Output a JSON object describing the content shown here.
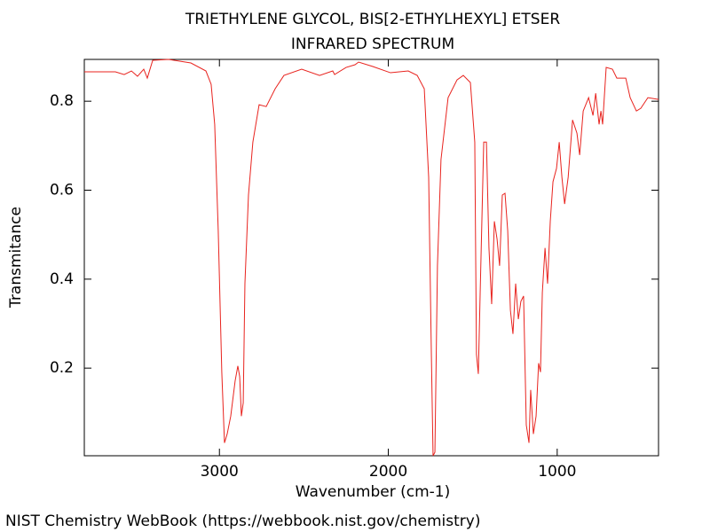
{
  "chart_data": {
    "type": "line",
    "title": "TRIETHYLENE GLYCOL, BIS[2-ETHYLHEXYL] ETSER",
    "subtitle": "INFRARED SPECTRUM",
    "x_label": "Wavenumber (cm-1)",
    "y_label": "Transmitance",
    "xlim": [
      3800,
      400
    ],
    "ylim": [
      0.003,
      0.894
    ],
    "xticks": [
      3000,
      2000,
      1000
    ],
    "yticks": [
      0.2,
      0.4,
      0.6,
      0.8
    ],
    "x": [
      3800,
      3616,
      3564,
      3521,
      3485,
      3448,
      3427,
      3395,
      3301,
      3169,
      3080,
      3049,
      3028,
      3007,
      2986,
      2970,
      2954,
      2933,
      2907,
      2891,
      2880,
      2870,
      2859,
      2849,
      2828,
      2802,
      2765,
      2723,
      2670,
      2618,
      2513,
      2407,
      2329,
      2318,
      2250,
      2197,
      2176,
      2092,
      1987,
      1882,
      1829,
      1787,
      1761,
      1745,
      1735,
      1724,
      1709,
      1688,
      1646,
      1593,
      1556,
      1514,
      1488,
      1478,
      1467,
      1456,
      1435,
      1419,
      1404,
      1388,
      1372,
      1356,
      1341,
      1325,
      1309,
      1293,
      1277,
      1262,
      1246,
      1230,
      1215,
      1199,
      1183,
      1167,
      1157,
      1141,
      1125,
      1110,
      1099,
      1088,
      1072,
      1057,
      1041,
      1025,
      1004,
      988,
      972,
      956,
      935,
      909,
      883,
      867,
      846,
      814,
      788,
      772,
      752,
      741,
      731,
      710,
      673,
      647,
      594,
      568,
      531,
      505,
      463,
      400
    ],
    "series": [
      {
        "name": "Transmitance",
        "color": "#e8231e",
        "values": [
          0.866,
          0.866,
          0.86,
          0.868,
          0.856,
          0.872,
          0.852,
          0.892,
          0.894,
          0.886,
          0.868,
          0.838,
          0.748,
          0.509,
          0.191,
          0.032,
          0.052,
          0.092,
          0.171,
          0.205,
          0.181,
          0.092,
          0.122,
          0.39,
          0.589,
          0.708,
          0.792,
          0.788,
          0.828,
          0.858,
          0.872,
          0.858,
          0.868,
          0.86,
          0.876,
          0.882,
          0.888,
          0.878,
          0.864,
          0.868,
          0.858,
          0.828,
          0.629,
          0.231,
          0.003,
          0.011,
          0.43,
          0.669,
          0.808,
          0.848,
          0.858,
          0.842,
          0.708,
          0.231,
          0.187,
          0.37,
          0.708,
          0.708,
          0.47,
          0.344,
          0.53,
          0.49,
          0.43,
          0.589,
          0.593,
          0.509,
          0.33,
          0.277,
          0.39,
          0.31,
          0.35,
          0.362,
          0.072,
          0.032,
          0.151,
          0.052,
          0.092,
          0.211,
          0.191,
          0.37,
          0.47,
          0.39,
          0.53,
          0.619,
          0.649,
          0.708,
          0.629,
          0.569,
          0.629,
          0.758,
          0.728,
          0.679,
          0.778,
          0.808,
          0.768,
          0.818,
          0.748,
          0.778,
          0.748,
          0.876,
          0.872,
          0.852,
          0.852,
          0.808,
          0.778,
          0.784,
          0.808,
          0.804
        ]
      }
    ],
    "grid": false
  },
  "footer": "NIST Chemistry WebBook (https://webbook.nist.gov/chemistry)"
}
